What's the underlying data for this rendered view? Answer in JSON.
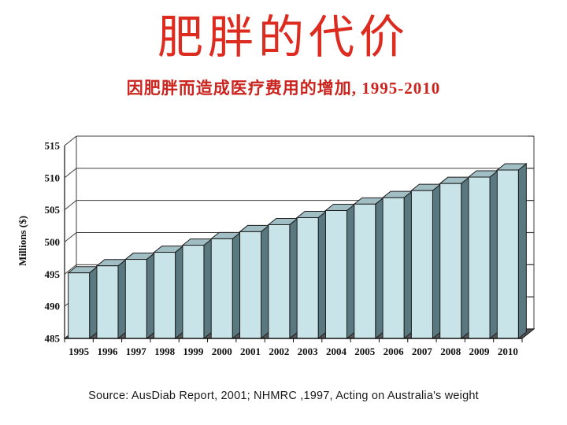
{
  "title": {
    "text": "肥胖的代价",
    "color": "#dd2b20"
  },
  "subtitle": {
    "text": "因肥胖而造成医疗费用的增加, 1995-2010",
    "color": "#cb231d"
  },
  "source": {
    "text": "Source: AusDiab Report, 2001; NHMRC ,1997, Acting on Australia's weight"
  },
  "chart_data": {
    "type": "bar",
    "title": "肥胖的代价",
    "subtitle": "因肥胖而造成医疗费用的增加, 1995-2010",
    "ylabel": "Millions ($)",
    "xlabel": "",
    "categories": [
      "1995",
      "1996",
      "1997",
      "1998",
      "1999",
      "2000",
      "2001",
      "2002",
      "2003",
      "2004",
      "2005",
      "2006",
      "2007",
      "2008",
      "2009",
      "2010"
    ],
    "values": [
      495.2,
      496.3,
      497.3,
      498.4,
      499.5,
      500.5,
      501.6,
      502.7,
      503.8,
      504.9,
      505.9,
      506.9,
      508.0,
      509.1,
      510.1,
      511.2
    ],
    "ylim": [
      485,
      515
    ],
    "yticks": [
      485,
      490,
      495,
      500,
      505,
      510,
      515
    ],
    "ytick_step": 5,
    "grid": true,
    "legend": false,
    "style_3d": true,
    "source": "Source: AusDiab Report, 2001; NHMRC ,1997, Acting on Australia's weight",
    "style": {
      "bar_front": "#c8e4e8",
      "bar_side": "#5a7880",
      "bar_top": "#a0bec4",
      "bar_outline": "#1c1c1c",
      "floor": "#565656",
      "grid_line": "#3c3c3c",
      "axis_line": "#111111",
      "axis_text": "#111111"
    }
  }
}
